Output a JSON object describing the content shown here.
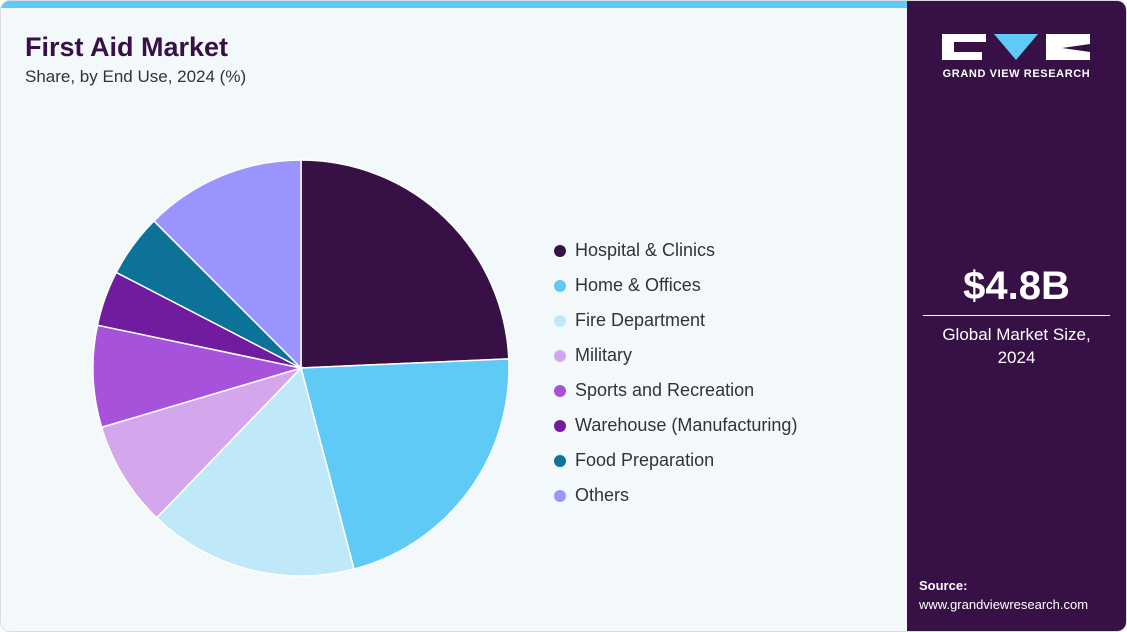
{
  "header": {
    "title": "First Aid Market",
    "subtitle": "Share, by End Use, 2024 (%)"
  },
  "sidebar": {
    "brand_name": "GRAND VIEW RESEARCH",
    "logo_icon": "gvr-logo-icon",
    "market_size": "$4.8B",
    "market_caption": "Global Market Size, 2024",
    "source_label": "Source:",
    "source_url": "www.grandviewresearch.com"
  },
  "colors": {
    "brand_dark": "#371145",
    "accent": "#5fcaf5",
    "background": "#f3f8fa"
  },
  "chart_data": {
    "type": "pie",
    "title": "First Aid Market",
    "subtitle": "Share, by End Use, 2024 (%)",
    "legend_position": "right",
    "start_angle_deg": 0,
    "direction": "clockwise",
    "categories": [
      "Hospital & Clinics",
      "Home & Offices",
      "Fire Department",
      "Military",
      "Sports and Recreation",
      "Warehouse (Manufacturing)",
      "Food Preparation",
      "Others"
    ],
    "values": [
      24.3,
      21.6,
      16.3,
      8.2,
      7.9,
      4.3,
      4.9,
      12.5
    ],
    "colors": [
      "#371145",
      "#5fcaf5",
      "#bfe8f8",
      "#d4a6ec",
      "#a652db",
      "#711c9f",
      "#0d7298",
      "#9a94ff"
    ]
  }
}
